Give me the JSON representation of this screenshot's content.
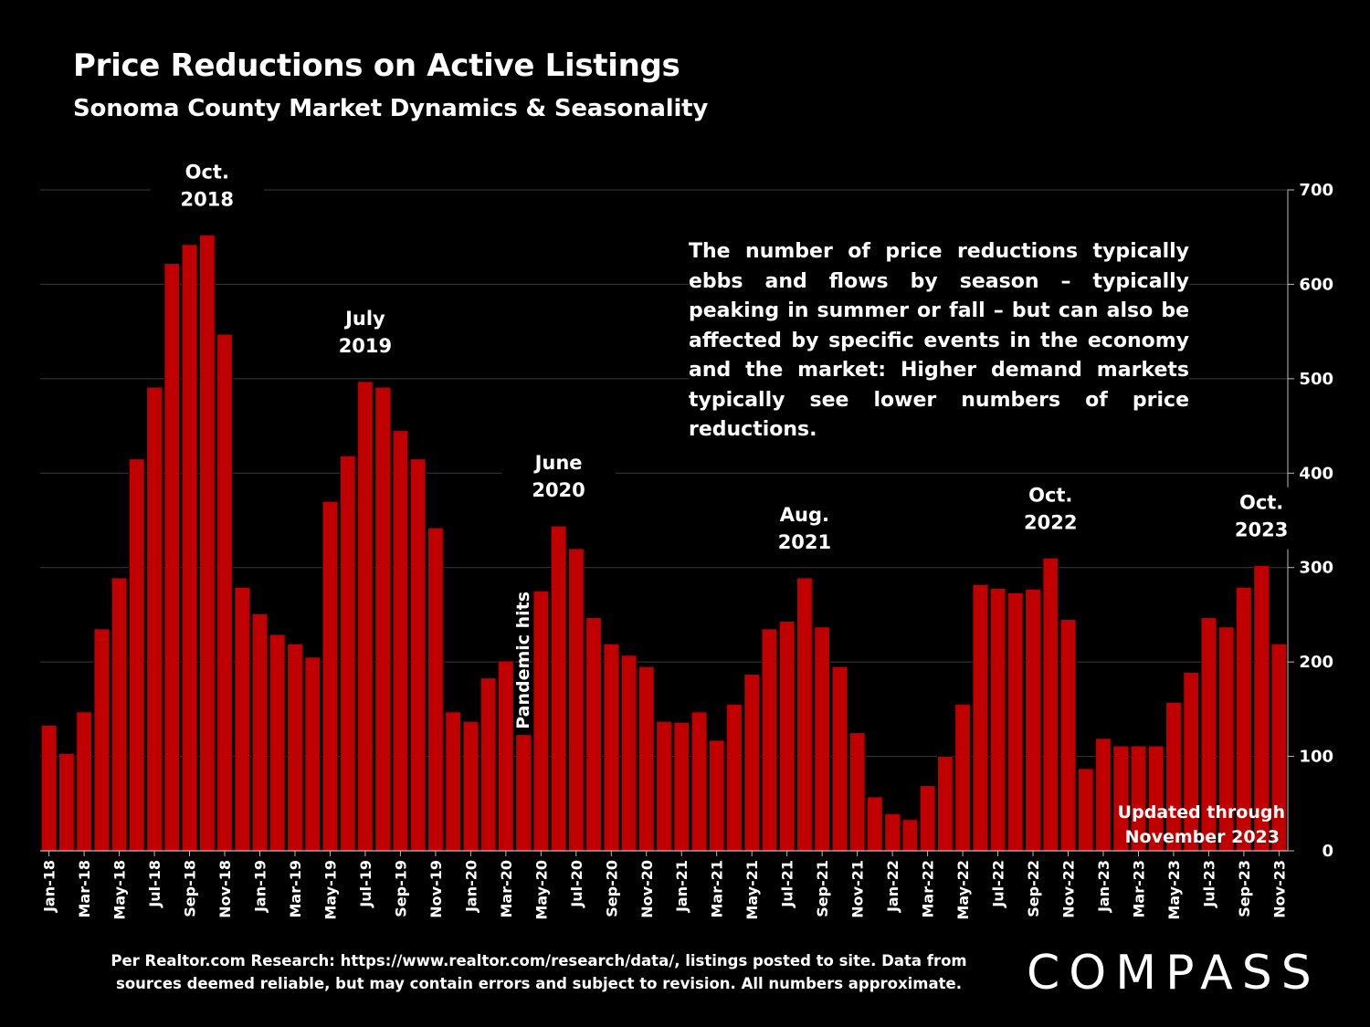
{
  "title": "Price Reductions on Active Listings",
  "subtitle": "Sonoma County Market Dynamics & Seasonality",
  "note": "The number of price reductions typically ebbs and flows by season – typically peaking in summer or fall – but can also be affected by specific events in the economy and the market: Higher demand markets typically see lower numbers of price reductions.",
  "footer_line1": "Per Realtor.com Research:  https://www.realtor.com/research/data/, listings posted to site. Data from",
  "footer_line2": "sources deemed reliable, but may contain errors and subject to revision. All numbers approximate.",
  "logo": "COMPASS",
  "colors": {
    "bar": "#c00000",
    "background": "#000000",
    "text": "#ffffff",
    "grid": "#3a3a3a"
  },
  "chart_data": {
    "type": "bar",
    "title": "Price Reductions on Active Listings",
    "ylim": [
      0,
      700
    ],
    "yticks": [
      0,
      100,
      200,
      300,
      400,
      500,
      600,
      700
    ],
    "y_axis_side": "right",
    "grid": true,
    "categories": [
      "Jan-18",
      "Feb-18",
      "Mar-18",
      "Apr-18",
      "May-18",
      "Jun-18",
      "Jul-18",
      "Aug-18",
      "Sep-18",
      "Oct-18",
      "Nov-18",
      "Dec-18",
      "Jan-19",
      "Feb-19",
      "Mar-19",
      "Apr-19",
      "May-19",
      "Jun-19",
      "Jul-19",
      "Aug-19",
      "Sep-19",
      "Oct-19",
      "Nov-19",
      "Dec-19",
      "Jan-20",
      "Feb-20",
      "Mar-20",
      "Apr-20",
      "May-20",
      "Jun-20",
      "Jul-20",
      "Aug-20",
      "Sep-20",
      "Oct-20",
      "Nov-20",
      "Dec-20",
      "Jan-21",
      "Feb-21",
      "Mar-21",
      "Apr-21",
      "May-21",
      "Jun-21",
      "Jul-21",
      "Aug-21",
      "Sep-21",
      "Oct-21",
      "Nov-21",
      "Dec-21",
      "Jan-22",
      "Feb-22",
      "Mar-22",
      "Apr-22",
      "May-22",
      "Jun-22",
      "Jul-22",
      "Aug-22",
      "Sep-22",
      "Oct-22",
      "Nov-22",
      "Dec-22",
      "Jan-23",
      "Feb-23",
      "Mar-23",
      "Apr-23",
      "May-23",
      "Jun-23",
      "Jul-23",
      "Aug-23",
      "Sep-23",
      "Oct-23",
      "Nov-23"
    ],
    "values": [
      133,
      103,
      147,
      235,
      289,
      415,
      491,
      622,
      642,
      652,
      547,
      279,
      251,
      229,
      219,
      205,
      370,
      418,
      497,
      491,
      445,
      415,
      342,
      147,
      137,
      183,
      201,
      123,
      275,
      344,
      320,
      247,
      219,
      207,
      195,
      137,
      136,
      147,
      117,
      155,
      187,
      235,
      243,
      289,
      237,
      195,
      125,
      57,
      39,
      33,
      69,
      100,
      155,
      282,
      278,
      273,
      277,
      310,
      245,
      87,
      119,
      111,
      111,
      111,
      157,
      189,
      247,
      237,
      279,
      302,
      219
    ],
    "annotations": [
      {
        "index": 9,
        "lines": [
          "Oct.",
          "2018"
        ]
      },
      {
        "index": 18,
        "lines": [
          "July",
          "2019"
        ]
      },
      {
        "index": 29,
        "lines": [
          "June",
          "2020"
        ]
      },
      {
        "index": 43,
        "lines": [
          "Aug.",
          "2021"
        ]
      },
      {
        "index": 57,
        "lines": [
          "Oct.",
          "2022"
        ]
      },
      {
        "index": 69,
        "lines": [
          "Oct.",
          "2023"
        ]
      }
    ],
    "event_annotation": {
      "index": 27,
      "text": "Pandemic hits"
    },
    "updated_note": [
      "Updated through",
      "November 2023"
    ]
  }
}
